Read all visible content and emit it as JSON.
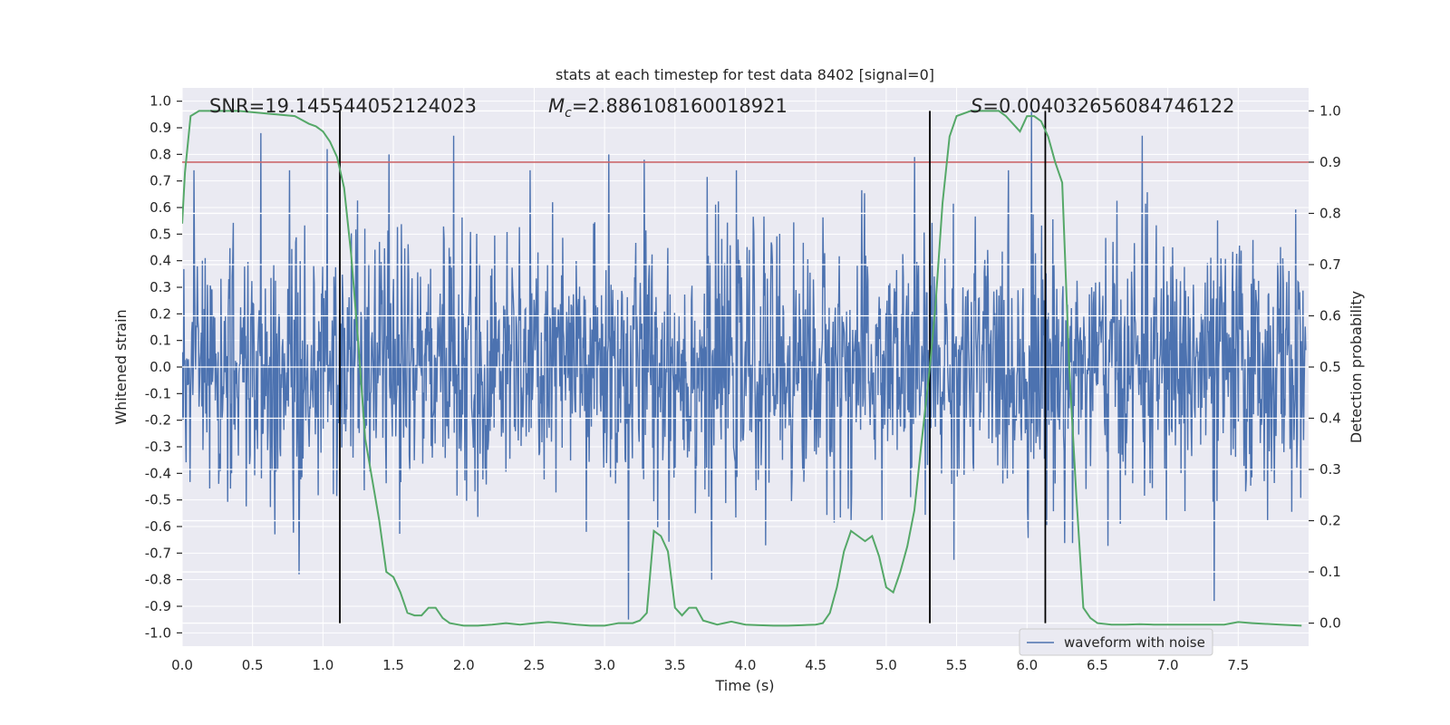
{
  "chart_data": {
    "type": "line",
    "title": "stats at each timestep for test data 8402 [signal=0]",
    "xlabel": "Time (s)",
    "ylabel_left": "Whitened strain",
    "ylabel_right": "Detection probability",
    "xlim": [
      0.0,
      8.0
    ],
    "ylim_left": [
      -1.05,
      1.05
    ],
    "ylim_right": [
      -0.045,
      1.045
    ],
    "x_ticks": [
      0.0,
      0.5,
      1.0,
      1.5,
      2.0,
      2.5,
      3.0,
      3.5,
      4.0,
      4.5,
      5.0,
      5.5,
      6.0,
      6.5,
      7.0,
      7.5
    ],
    "x_tick_labels": [
      "0.0",
      "0.5",
      "1.0",
      "1.5",
      "2.0",
      "2.5",
      "3.0",
      "3.5",
      "4.0",
      "4.5",
      "5.0",
      "5.5",
      "6.0",
      "6.5",
      "7.0",
      "7.5"
    ],
    "y_ticks_left": [
      1.0,
      0.9,
      0.8,
      0.7,
      0.6,
      0.5,
      0.4,
      0.3,
      0.2,
      0.1,
      0.0,
      -0.1,
      -0.2,
      -0.3,
      -0.4,
      -0.5,
      -0.6,
      -0.7,
      -0.8,
      -0.9,
      -1.0
    ],
    "y_tick_labels_left": [
      "1.0",
      "0.9",
      "0.8",
      "0.7",
      "0.6",
      "0.5",
      "0.4",
      "0.3",
      "0.2",
      "0.1",
      "0.0",
      "-0.1",
      "-0.2",
      "-0.3",
      "-0.4",
      "-0.5",
      "-0.6",
      "-0.7",
      "-0.8",
      "-0.9",
      "-1.0"
    ],
    "y_ticks_right": [
      1.0,
      0.9,
      0.8,
      0.7,
      0.6,
      0.5,
      0.4,
      0.3,
      0.2,
      0.1,
      0.0
    ],
    "y_tick_labels_right": [
      "1.0",
      "0.9",
      "0.8",
      "0.7",
      "0.6",
      "0.5",
      "0.4",
      "0.3",
      "0.2",
      "0.1",
      "0.0"
    ],
    "threshold": 0.9,
    "vertical_lines": [
      1.12,
      5.31,
      6.13
    ],
    "annotations": {
      "snr_label": "SNR=19.145544052124023",
      "mc_symbol": "M",
      "mc_subscript": "c",
      "mc_value": "=2.886108160018921",
      "s_symbol": "S",
      "s_value": "=0.004032656084746122"
    },
    "legend": {
      "label": "waveform with noise",
      "position": "bottom-right"
    },
    "series": [
      {
        "name": "waveform with noise",
        "axis": "left",
        "color": "#4c72b0",
        "style": "dense noise",
        "sample_points": 2000,
        "x_end": 7.98,
        "peaks": [
          [
            0.56,
            0.88
          ],
          [
            1.03,
            0.82
          ],
          [
            1.47,
            0.8
          ],
          [
            1.93,
            0.87
          ],
          [
            3.03,
            0.8
          ],
          [
            3.28,
            0.78
          ],
          [
            5.2,
            0.79
          ],
          [
            6.03,
            1.0
          ],
          [
            6.82,
            0.87
          ],
          [
            0.83,
            -0.78
          ],
          [
            3.17,
            -0.95
          ],
          [
            3.76,
            -0.8
          ],
          [
            7.33,
            -0.88
          ],
          [
            5.31,
            -0.7
          ],
          [
            2.87,
            -0.62
          ]
        ]
      },
      {
        "name": "detection probability",
        "axis": "right",
        "color": "#55a868",
        "x": [
          0.0,
          0.02,
          0.06,
          0.12,
          0.2,
          0.4,
          0.6,
          0.8,
          0.9,
          0.95,
          1.0,
          1.05,
          1.1,
          1.15,
          1.2,
          1.25,
          1.3,
          1.4,
          1.45,
          1.5,
          1.55,
          1.6,
          1.65,
          1.7,
          1.75,
          1.8,
          1.85,
          1.9,
          2.0,
          2.1,
          2.2,
          2.3,
          2.4,
          2.5,
          2.6,
          2.7,
          2.8,
          2.9,
          3.0,
          3.1,
          3.2,
          3.25,
          3.3,
          3.35,
          3.4,
          3.45,
          3.5,
          3.55,
          3.6,
          3.65,
          3.7,
          3.8,
          3.9,
          4.0,
          4.1,
          4.2,
          4.3,
          4.4,
          4.5,
          4.55,
          4.6,
          4.65,
          4.7,
          4.75,
          4.8,
          4.85,
          4.9,
          4.95,
          5.0,
          5.05,
          5.1,
          5.15,
          5.2,
          5.25,
          5.31,
          5.35,
          5.4,
          5.45,
          5.5,
          5.6,
          5.7,
          5.8,
          5.85,
          5.9,
          5.95,
          6.0,
          6.05,
          6.1,
          6.15,
          6.2,
          6.25,
          6.3,
          6.35,
          6.4,
          6.45,
          6.5,
          6.6,
          6.7,
          6.8,
          6.9,
          7.0,
          7.2,
          7.4,
          7.5,
          7.6,
          7.8,
          7.95
        ],
        "y": [
          0.78,
          0.88,
          0.99,
          1.0,
          1.0,
          1.0,
          0.995,
          0.99,
          0.975,
          0.97,
          0.96,
          0.94,
          0.91,
          0.85,
          0.72,
          0.55,
          0.36,
          0.2,
          0.1,
          0.09,
          0.06,
          0.02,
          0.015,
          0.015,
          0.03,
          0.03,
          0.01,
          0.0,
          -0.005,
          -0.005,
          -0.003,
          0.0,
          -0.003,
          0.0,
          0.002,
          0.0,
          -0.003,
          -0.005,
          -0.005,
          0.0,
          0.0,
          0.005,
          0.02,
          0.18,
          0.17,
          0.14,
          0.03,
          0.015,
          0.03,
          0.03,
          0.005,
          -0.003,
          0.003,
          -0.003,
          -0.004,
          -0.005,
          -0.005,
          -0.004,
          -0.003,
          0.0,
          0.02,
          0.07,
          0.14,
          0.18,
          0.17,
          0.16,
          0.17,
          0.13,
          0.07,
          0.06,
          0.1,
          0.15,
          0.22,
          0.35,
          0.5,
          0.62,
          0.82,
          0.95,
          0.99,
          1.0,
          1.0,
          1.0,
          0.99,
          0.975,
          0.96,
          0.99,
          0.99,
          0.98,
          0.95,
          0.9,
          0.86,
          0.5,
          0.25,
          0.03,
          0.01,
          0.0,
          -0.003,
          -0.003,
          -0.002,
          -0.003,
          -0.003,
          -0.003,
          -0.003,
          0.002,
          0.0,
          -0.003,
          -0.005
        ]
      }
    ],
    "colors": {
      "axes_bg": "#eaeaf2",
      "grid": "#ffffff",
      "threshold": "#c44e52",
      "vline": "#000000"
    }
  }
}
